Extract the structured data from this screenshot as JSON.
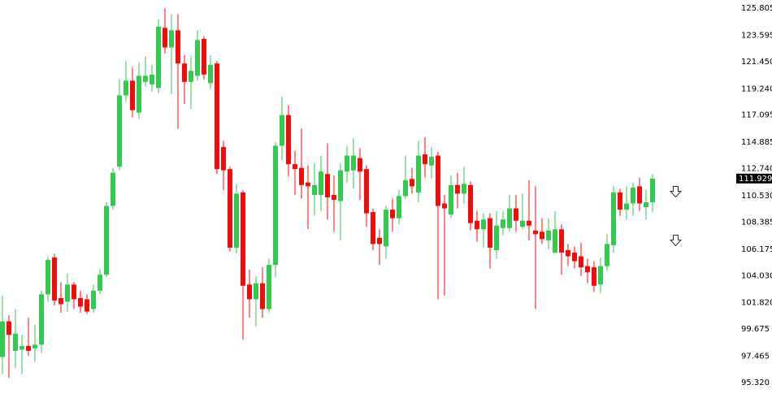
{
  "chart_data": {
    "type": "candlestick",
    "up_color": "#34c94f",
    "down_color": "#f20d0d",
    "ylim": [
      94.06,
      126.47
    ],
    "yticks": [
      125.805,
      123.595,
      {
        "value": 121.45,
        "label": "121.450"
      },
      {
        "value": 119.24,
        "label": "119.240"
      },
      117.095,
      114.885,
      {
        "value": 112.74,
        "label": "112.740"
      },
      {
        "value": 110.53,
        "label": "110.530"
      },
      108.385,
      106.175,
      {
        "value": 104.03,
        "label": "104.030"
      },
      {
        "value": 101.82,
        "label": "101.820"
      },
      99.675,
      97.465,
      {
        "value": 95.32,
        "label": "95.320"
      }
    ],
    "current_price": 111.929,
    "open": [
      97.4,
      100.3,
      97.9,
      98.0,
      98.3,
      98.1,
      98.4,
      102.5,
      105.5,
      102.2,
      101.9,
      103.3,
      102.2,
      102.1,
      101.3,
      102.8,
      104.1,
      109.7,
      112.9,
      118.7,
      119.9,
      117.3,
      119.8,
      119.6,
      119.3,
      124.2,
      122.6,
      124.0,
      121.3,
      119.8,
      120.3,
      123.3,
      119.7,
      121.3,
      114.5,
      112.7,
      106.3,
      110.8,
      103.3,
      102.1,
      103.4,
      101.3,
      104.9,
      114.6,
      117.1,
      113.1,
      112.8,
      111.6,
      110.6,
      110.6,
      112.3,
      110.6,
      110.1,
      112.5,
      112.6,
      113.6,
      112.7,
      109.2,
      107.1,
      106.4,
      109.4,
      108.7,
      110.5,
      111.9,
      110.8,
      113.9,
      113.0,
      113.8,
      109.9,
      109.0,
      111.4,
      110.7,
      111.4,
      108.5,
      107.8,
      108.7,
      106.1,
      107.9,
      107.9,
      109.5,
      108.0,
      108.5,
      107.7,
      107.6,
      106.9,
      105.9,
      107.8,
      106.1,
      105.9,
      105.6,
      104.8,
      104.7,
      103.3,
      104.8,
      106.5,
      110.8,
      109.4,
      109.9,
      111.3,
      109.6,
      110.0
    ],
    "high": [
      102.4,
      100.8,
      101.3,
      99.2,
      100.6,
      100.0,
      102.8,
      105.6,
      105.8,
      103.5,
      104.2,
      103.5,
      102.8,
      102.5,
      103.3,
      104.6,
      110.0,
      112.8,
      120.0,
      121.5,
      121.0,
      121.4,
      121.9,
      121.2,
      124.9,
      125.8,
      125.3,
      125.3,
      122.0,
      121.9,
      124.0,
      123.5,
      122.0,
      121.5,
      115.0,
      112.9,
      111.5,
      111.0,
      104.5,
      104.0,
      104.7,
      105.4,
      114.9,
      118.6,
      117.9,
      114.2,
      116.0,
      113.0,
      113.2,
      113.8,
      114.8,
      112.2,
      113.2,
      114.6,
      115.2,
      114.4,
      113.0,
      109.5,
      107.8,
      109.7,
      110.3,
      111.0,
      113.8,
      112.8,
      115.0,
      115.3,
      114.5,
      114.1,
      110.6,
      112.2,
      112.4,
      112.9,
      111.7,
      109.3,
      109.1,
      109.1,
      109.3,
      109.3,
      110.6,
      110.6,
      110.7,
      111.8,
      111.3,
      108.7,
      108.7,
      109.3,
      108.2,
      106.6,
      106.4,
      106.7,
      105.4,
      105.2,
      105.5,
      107.4,
      111.3,
      111.1,
      111.3,
      111.6,
      112.0,
      111.0,
      112.3
    ],
    "low": [
      96.0,
      95.7,
      96.5,
      96.0,
      97.5,
      97.0,
      97.7,
      101.9,
      101.6,
      101.0,
      101.1,
      101.3,
      101.0,
      100.9,
      101.0,
      102.5,
      103.9,
      109.4,
      112.6,
      118.2,
      116.9,
      116.8,
      119.4,
      119.0,
      118.9,
      122.1,
      118.8,
      116.0,
      118.0,
      117.6,
      119.9,
      120.0,
      119.2,
      112.3,
      111.0,
      106.0,
      105.8,
      98.8,
      100.6,
      99.9,
      100.6,
      101.0,
      103.9,
      113.4,
      112.1,
      110.6,
      110.3,
      107.8,
      108.9,
      109.3,
      108.6,
      107.6,
      106.9,
      111.6,
      111.1,
      110.2,
      108.0,
      106.1,
      104.9,
      105.4,
      107.6,
      108.2,
      110.3,
      110.7,
      110.0,
      112.0,
      111.9,
      102.1,
      102.4,
      108.7,
      109.5,
      109.9,
      107.7,
      106.8,
      106.3,
      104.6,
      105.4,
      107.3,
      107.6,
      107.6,
      107.8,
      106.9,
      101.3,
      106.6,
      106.2,
      105.8,
      104.1,
      104.8,
      104.6,
      104.0,
      103.4,
      102.7,
      102.6,
      104.4,
      105.9,
      108.9,
      108.6,
      108.9,
      109.3,
      108.6,
      109.2
    ],
    "close": [
      100.3,
      99.2,
      99.3,
      98.3,
      97.9,
      98.4,
      102.5,
      105.3,
      102.0,
      101.7,
      103.3,
      102.1,
      101.5,
      101.1,
      102.8,
      104.1,
      109.7,
      112.4,
      118.7,
      119.9,
      117.5,
      120.3,
      120.3,
      120.4,
      124.3,
      122.6,
      124.0,
      121.3,
      119.8,
      120.7,
      123.2,
      120.4,
      121.2,
      112.7,
      112.6,
      106.3,
      110.7,
      103.2,
      102.1,
      103.4,
      101.3,
      104.9,
      114.6,
      117.1,
      113.1,
      112.7,
      111.4,
      111.3,
      111.4,
      112.5,
      110.4,
      110.2,
      112.6,
      113.8,
      113.8,
      112.5,
      109.1,
      106.6,
      106.6,
      109.4,
      108.7,
      110.5,
      111.8,
      111.3,
      113.8,
      113.1,
      113.7,
      109.7,
      109.5,
      111.4,
      110.7,
      111.5,
      108.3,
      107.8,
      108.6,
      106.3,
      108.1,
      108.6,
      109.5,
      108.5,
      108.5,
      108.1,
      107.4,
      107.0,
      107.7,
      107.8,
      105.9,
      105.6,
      105.2,
      104.7,
      104.3,
      103.2,
      104.8,
      106.6,
      110.8,
      109.4,
      109.9,
      111.2,
      109.9,
      110.0,
      111.929
    ]
  }
}
